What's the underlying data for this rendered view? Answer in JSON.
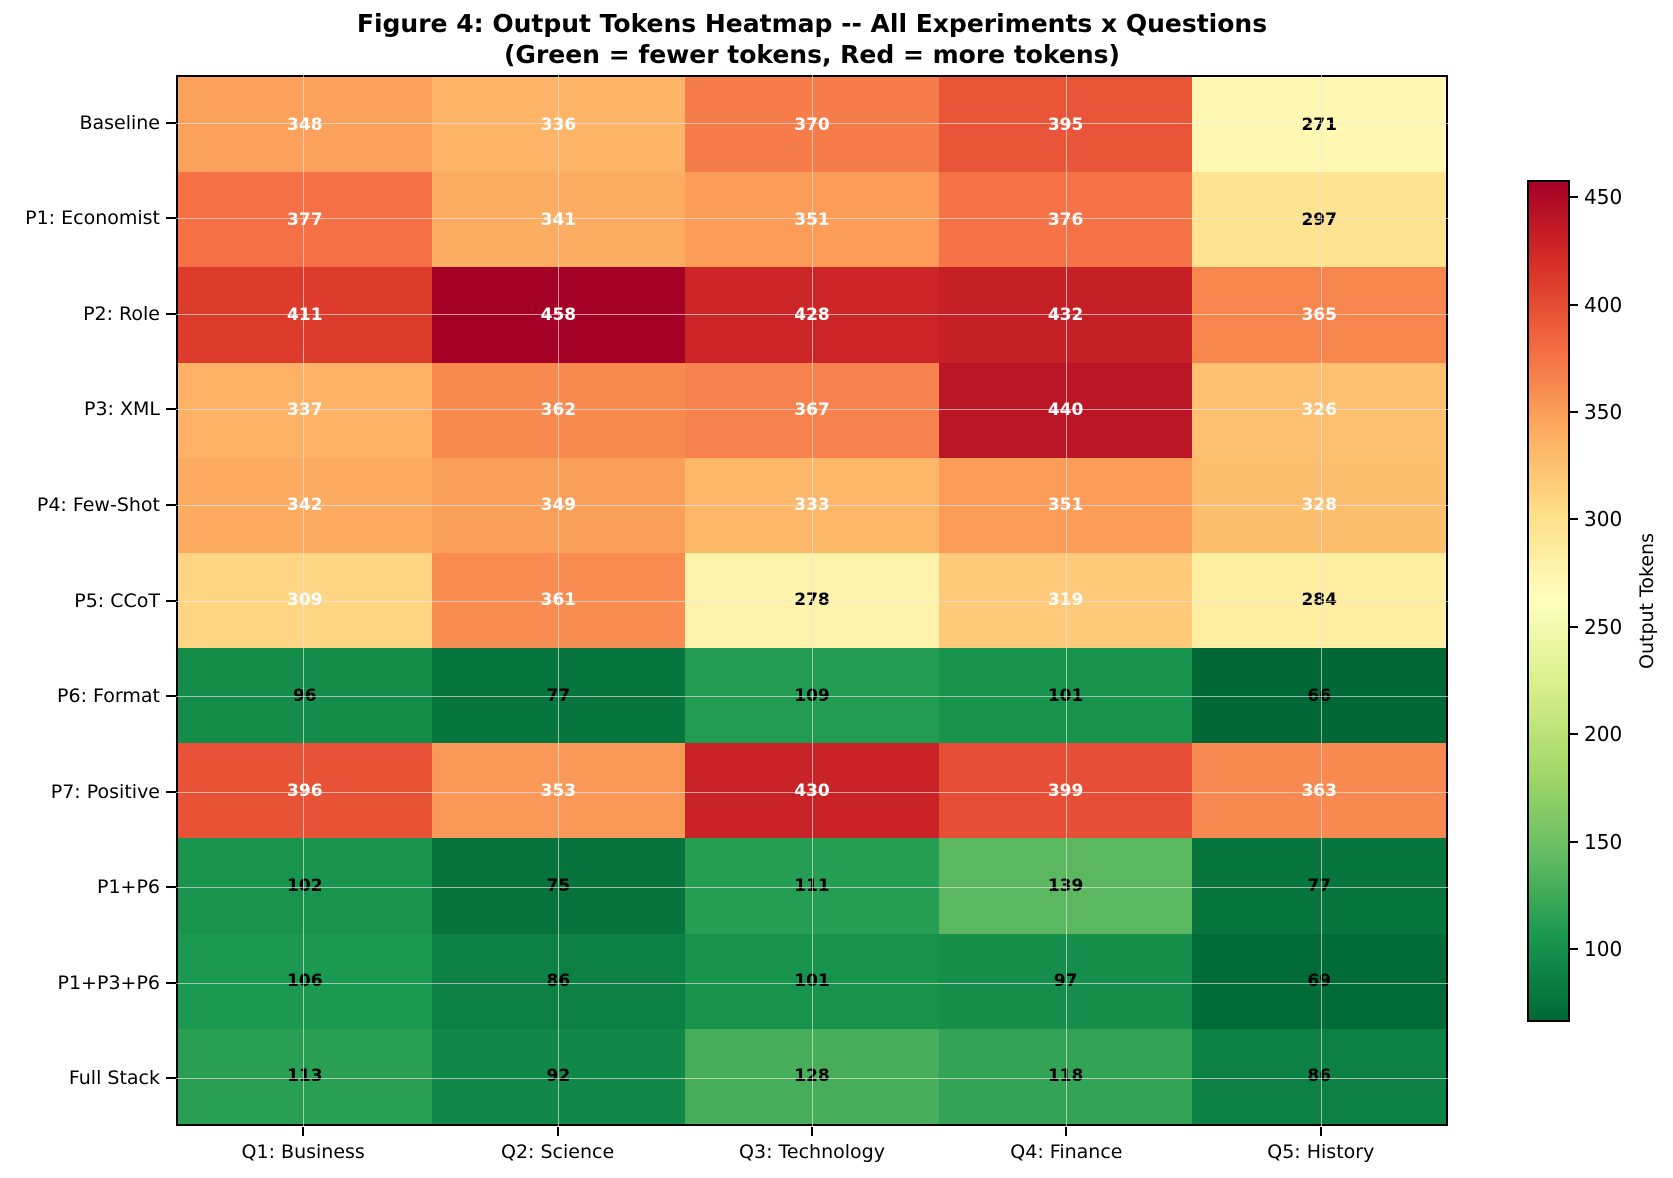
{
  "figure": {
    "title_line1": "Figure 4: Output Tokens Heatmap -- All Experiments x Questions",
    "title_line2": "(Green = fewer tokens, Red = more tokens)"
  },
  "chart_data": {
    "type": "heatmap",
    "title": "Figure 4: Output Tokens Heatmap -- All Experiments x Questions (Green = fewer tokens, Red = more tokens)",
    "rows": [
      "Baseline",
      "P1: Economist",
      "P2: Role",
      "P3: XML",
      "P4: Few-Shot",
      "P5: CCoT",
      "P6: Format",
      "P7: Positive",
      "P1+P6",
      "P1+P3+P6",
      "Full Stack"
    ],
    "columns": [
      "Q1: Business",
      "Q2: Science",
      "Q3: Technology",
      "Q4: Finance",
      "Q5: History"
    ],
    "values": [
      [
        348,
        336,
        370,
        395,
        271
      ],
      [
        377,
        341,
        351,
        376,
        297
      ],
      [
        411,
        458,
        428,
        432,
        365
      ],
      [
        337,
        362,
        367,
        440,
        326
      ],
      [
        342,
        349,
        333,
        351,
        328
      ],
      [
        309,
        361,
        278,
        319,
        284
      ],
      [
        96,
        77,
        109,
        101,
        66
      ],
      [
        396,
        353,
        430,
        399,
        363
      ],
      [
        102,
        75,
        111,
        139,
        77
      ],
      [
        106,
        86,
        101,
        97,
        69
      ],
      [
        113,
        92,
        128,
        118,
        86
      ]
    ],
    "vmin": 66,
    "vmax": 458,
    "colormap": "RdYlGn_r",
    "colormap_stops_rdylgn": [
      [
        0.0,
        "#a50026"
      ],
      [
        0.1,
        "#d73027"
      ],
      [
        0.2,
        "#f46d43"
      ],
      [
        0.3,
        "#fdae61"
      ],
      [
        0.4,
        "#fee08b"
      ],
      [
        0.5,
        "#ffffbf"
      ],
      [
        0.6,
        "#d9ef8b"
      ],
      [
        0.7,
        "#a6d96a"
      ],
      [
        0.8,
        "#66bd63"
      ],
      [
        0.9,
        "#1a9850"
      ],
      [
        1.0,
        "#006837"
      ]
    ],
    "cell_text": {
      "white_if_greater_than": 300,
      "white": "#ffffff",
      "black": "#000000"
    },
    "colorbar": {
      "label": "Output Tokens",
      "ticks": [
        450,
        400,
        350,
        300,
        250,
        200,
        150,
        100
      ]
    },
    "grid": true,
    "legend_position": "right-colorbar"
  }
}
